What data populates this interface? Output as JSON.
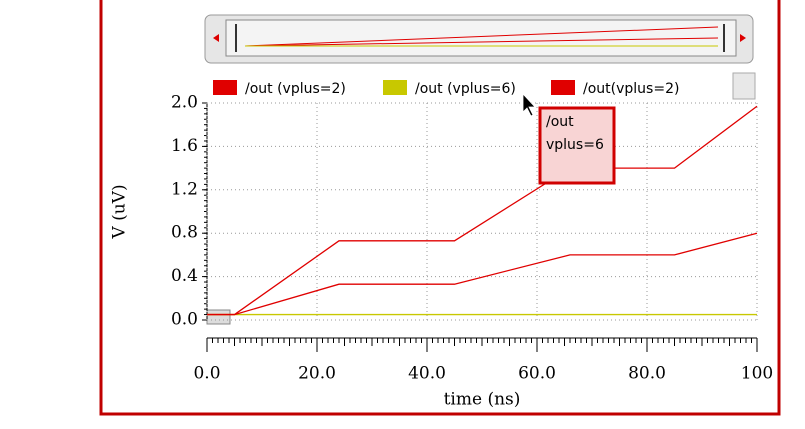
{
  "chart_data": {
    "type": "line",
    "y_label": "V (uV)",
    "x_label": "time (ns)",
    "annotation": [
      "/out",
      "vplus=6"
    ],
    "x": [
      0,
      5,
      24,
      45,
      66,
      85,
      100
    ],
    "series": [
      {
        "name": "/out (vplus=2)",
        "color": "#e00000",
        "values": [
          0.05,
          0.05,
          0.73,
          0.73,
          1.4,
          1.4,
          1.97
        ]
      },
      {
        "name": "/out (vplus=6)",
        "color": "#c8c800",
        "values": [
          0.05,
          0.05,
          0.05,
          0.05,
          0.05,
          0.05,
          0.05
        ]
      },
      {
        "name": "/out(vplus=2)",
        "color": "#e00000",
        "values": [
          0.05,
          0.05,
          0.33,
          0.33,
          0.6,
          0.6,
          0.8
        ]
      }
    ],
    "xlim": [
      0,
      100
    ],
    "xticks": [
      {
        "value": 0,
        "label": "0.0"
      },
      {
        "value": 20,
        "label": "20.0"
      },
      {
        "value": 40,
        "label": "40.0"
      },
      {
        "value": 60,
        "label": "60.0"
      },
      {
        "value": 80,
        "label": "80.0"
      },
      100
    ],
    "ylim": [
      0,
      2
    ],
    "yticks": [
      {
        "value": 0,
        "label": "0.0"
      },
      0.4,
      0.8,
      1.2,
      1.6,
      {
        "value": 2,
        "label": "2.0"
      }
    ],
    "grid": true
  }
}
